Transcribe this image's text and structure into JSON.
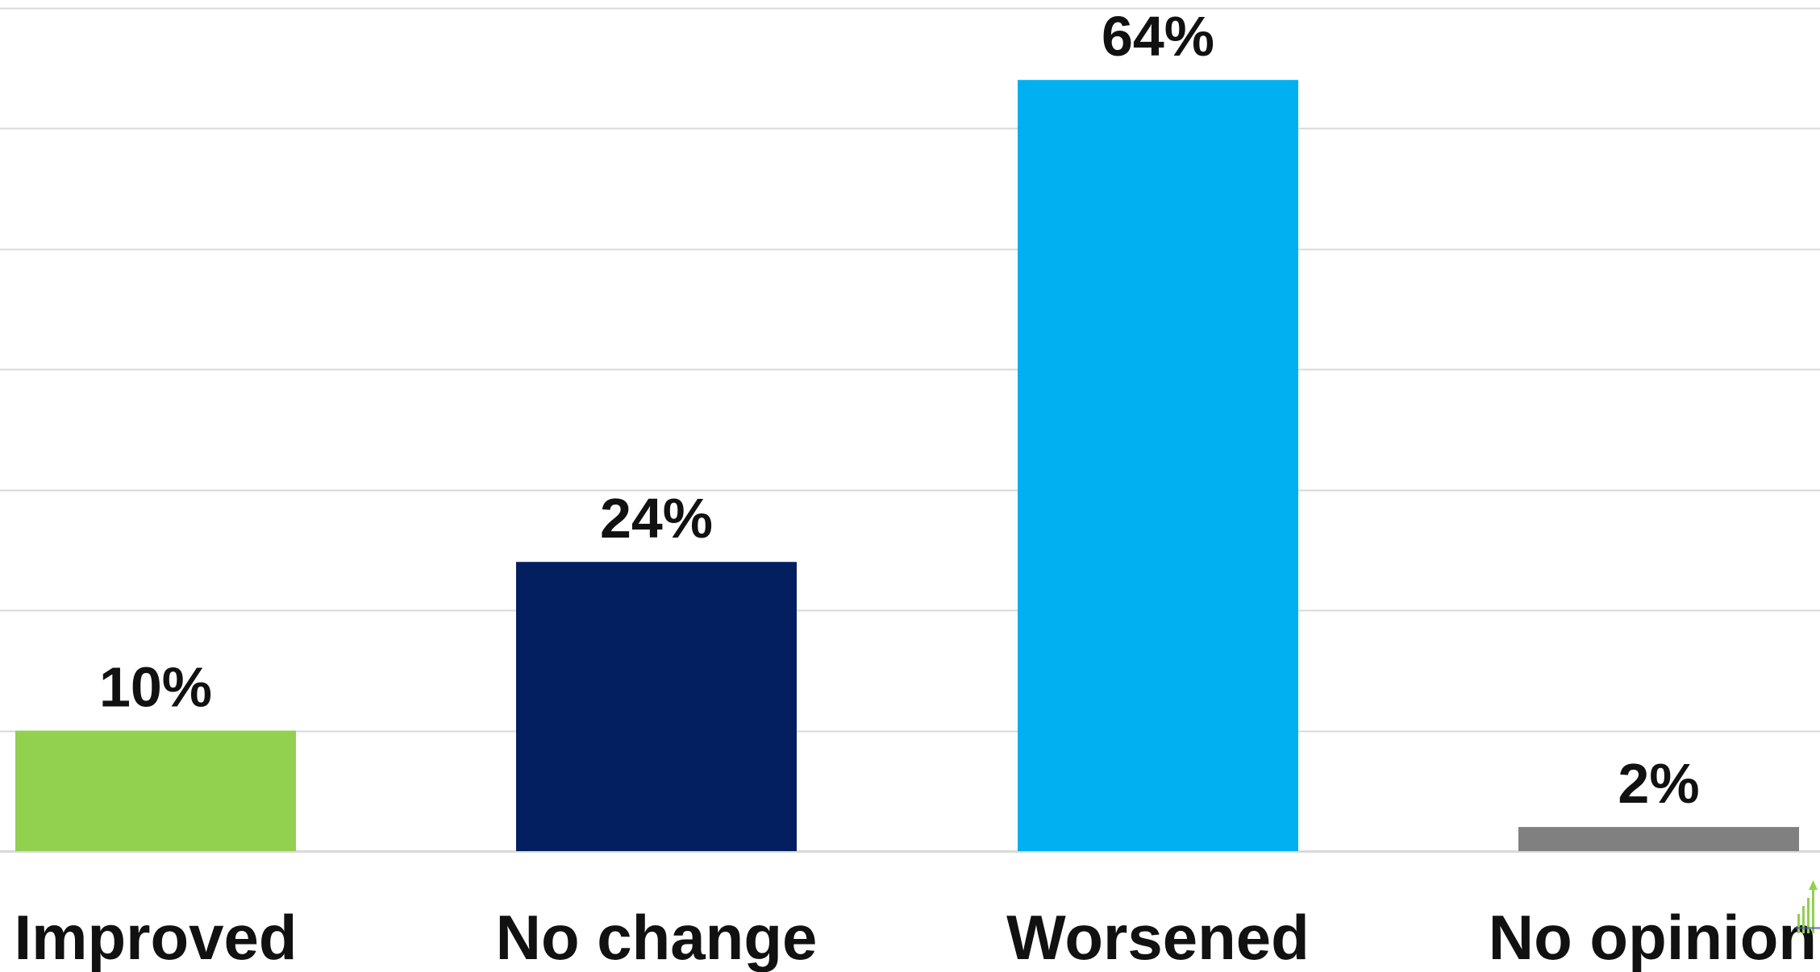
{
  "chart_data": {
    "type": "bar",
    "categories": [
      "Improved",
      "No change",
      "Worsened",
      "No opinion"
    ],
    "values": [
      10,
      24,
      64,
      2
    ],
    "data_labels": [
      "10%",
      "24%",
      "64%",
      "2%"
    ],
    "colors": [
      "#92d050",
      "#041f5f",
      "#00b0f0",
      "#808080"
    ],
    "ylim": [
      0,
      70
    ],
    "y_gridline_step": 10,
    "grid": true,
    "legend": "none",
    "title": "",
    "xlabel": "",
    "ylabel": ""
  },
  "logo": {
    "icon": "bar-growth-logo-icon",
    "color": "#92d050"
  }
}
